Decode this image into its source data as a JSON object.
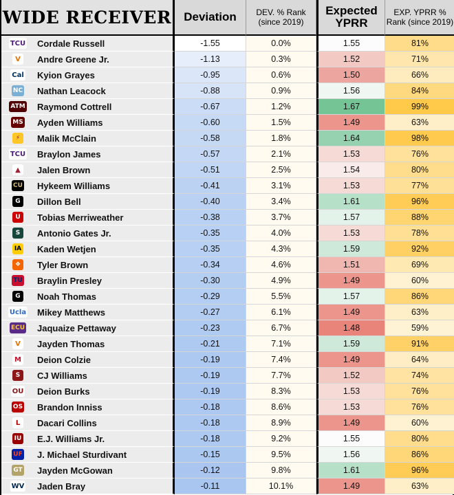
{
  "chart_data": {
    "type": "table",
    "title": "WIDE RECEIVER",
    "columns": [
      "Deviation",
      "DEV. % Rank (since 2019)",
      "Expected YPRR",
      "EXP. YPRR % Rank (since 2019)"
    ],
    "rows": [
      {
        "name": "Cordale Russell",
        "logo": "tcu-logo",
        "deviation": "-1.55",
        "dev_rank": "0.0%",
        "exp_yprr": "1.55",
        "exp_rank": "81%"
      },
      {
        "name": "Andre Greene Jr.",
        "logo": "virginia-logo",
        "deviation": "-1.13",
        "dev_rank": "0.3%",
        "exp_yprr": "1.52",
        "exp_rank": "71%"
      },
      {
        "name": "Kyion Grayes",
        "logo": "cal-logo",
        "deviation": "-0.95",
        "dev_rank": "0.6%",
        "exp_yprr": "1.50",
        "exp_rank": "66%"
      },
      {
        "name": "Nathan Leacock",
        "logo": "unc-logo",
        "deviation": "-0.88",
        "dev_rank": "0.9%",
        "exp_yprr": "1.56",
        "exp_rank": "84%"
      },
      {
        "name": "Raymond Cottrell",
        "logo": "texas-am-logo",
        "deviation": "-0.67",
        "dev_rank": "1.2%",
        "exp_yprr": "1.67",
        "exp_rank": "99%"
      },
      {
        "name": "Ayden Williams",
        "logo": "mississippi-state-logo",
        "deviation": "-0.60",
        "dev_rank": "1.5%",
        "exp_yprr": "1.49",
        "exp_rank": "63%"
      },
      {
        "name": "Malik McClain",
        "logo": "arizona-state-logo",
        "deviation": "-0.58",
        "dev_rank": "1.8%",
        "exp_yprr": "1.64",
        "exp_rank": "98%"
      },
      {
        "name": "Braylon James",
        "logo": "tcu-logo",
        "deviation": "-0.57",
        "dev_rank": "2.1%",
        "exp_yprr": "1.53",
        "exp_rank": "76%"
      },
      {
        "name": "Jalen Brown",
        "logo": "arkansas-logo",
        "deviation": "-0.51",
        "dev_rank": "2.5%",
        "exp_yprr": "1.54",
        "exp_rank": "80%"
      },
      {
        "name": "Hykeem Williams",
        "logo": "colorado-logo",
        "deviation": "-0.41",
        "dev_rank": "3.1%",
        "exp_yprr": "1.53",
        "exp_rank": "77%"
      },
      {
        "name": "Dillon Bell",
        "logo": "georgia-logo",
        "deviation": "-0.40",
        "dev_rank": "3.4%",
        "exp_yprr": "1.61",
        "exp_rank": "96%"
      },
      {
        "name": "Tobias Merriweather",
        "logo": "utah-logo",
        "deviation": "-0.38",
        "dev_rank": "3.7%",
        "exp_yprr": "1.57",
        "exp_rank": "88%"
      },
      {
        "name": "Antonio Gates Jr.",
        "logo": "michigan-state-logo",
        "deviation": "-0.35",
        "dev_rank": "4.0%",
        "exp_yprr": "1.53",
        "exp_rank": "78%"
      },
      {
        "name": "Kaden Wetjen",
        "logo": "iowa-logo",
        "deviation": "-0.35",
        "dev_rank": "4.3%",
        "exp_yprr": "1.59",
        "exp_rank": "92%"
      },
      {
        "name": "Tyler Brown",
        "logo": "clemson-logo",
        "deviation": "-0.34",
        "dev_rank": "4.6%",
        "exp_yprr": "1.51",
        "exp_rank": "69%"
      },
      {
        "name": "Braylin Presley",
        "logo": "tulsa-logo",
        "deviation": "-0.30",
        "dev_rank": "4.9%",
        "exp_yprr": "1.49",
        "exp_rank": "60%"
      },
      {
        "name": "Noah Thomas",
        "logo": "georgia-logo",
        "deviation": "-0.29",
        "dev_rank": "5.5%",
        "exp_yprr": "1.57",
        "exp_rank": "86%"
      },
      {
        "name": "Mikey Matthews",
        "logo": "ucla-logo",
        "deviation": "-0.27",
        "dev_rank": "6.1%",
        "exp_yprr": "1.49",
        "exp_rank": "63%"
      },
      {
        "name": "Jaquaize Pettaway",
        "logo": "east-carolina-logo",
        "deviation": "-0.23",
        "dev_rank": "6.7%",
        "exp_yprr": "1.48",
        "exp_rank": "59%"
      },
      {
        "name": "Jayden Thomas",
        "logo": "virginia-logo",
        "deviation": "-0.21",
        "dev_rank": "7.1%",
        "exp_yprr": "1.59",
        "exp_rank": "91%"
      },
      {
        "name": "Deion Colzie",
        "logo": "miami-ohio-logo",
        "deviation": "-0.19",
        "dev_rank": "7.4%",
        "exp_yprr": "1.49",
        "exp_rank": "64%"
      },
      {
        "name": "CJ Williams",
        "logo": "stanford-logo",
        "deviation": "-0.19",
        "dev_rank": "7.7%",
        "exp_yprr": "1.52",
        "exp_rank": "74%"
      },
      {
        "name": "Deion Burks",
        "logo": "oklahoma-logo",
        "deviation": "-0.19",
        "dev_rank": "8.3%",
        "exp_yprr": "1.53",
        "exp_rank": "76%"
      },
      {
        "name": "Brandon Inniss",
        "logo": "ohio-state-logo",
        "deviation": "-0.18",
        "dev_rank": "8.6%",
        "exp_yprr": "1.53",
        "exp_rank": "76%"
      },
      {
        "name": "Dacari Collins",
        "logo": "louisville-logo",
        "deviation": "-0.18",
        "dev_rank": "8.9%",
        "exp_yprr": "1.49",
        "exp_rank": "60%"
      },
      {
        "name": "E.J. Williams Jr.",
        "logo": "indiana-logo",
        "deviation": "-0.18",
        "dev_rank": "9.2%",
        "exp_yprr": "1.55",
        "exp_rank": "80%"
      },
      {
        "name": "J. Michael Sturdivant",
        "logo": "florida-logo",
        "deviation": "-0.15",
        "dev_rank": "9.5%",
        "exp_yprr": "1.56",
        "exp_rank": "86%"
      },
      {
        "name": "Jayden McGowan",
        "logo": "georgia-tech-logo",
        "deviation": "-0.12",
        "dev_rank": "9.8%",
        "exp_yprr": "1.61",
        "exp_rank": "96%"
      },
      {
        "name": "Jaden Bray",
        "logo": "west-virginia-logo",
        "deviation": "-0.11",
        "dev_rank": "10.1%",
        "exp_yprr": "1.49",
        "exp_rank": "63%"
      }
    ]
  },
  "logos": {
    "tcu-logo": {
      "text": "TCU",
      "bg": "#ffffff",
      "fg": "#4d1979"
    },
    "virginia-logo": {
      "text": "V",
      "bg": "#ffffff",
      "fg": "#e57200"
    },
    "cal-logo": {
      "text": "Cal",
      "bg": "#ffffff",
      "fg": "#003262"
    },
    "unc-logo": {
      "text": "NC",
      "bg": "#7bafd4",
      "fg": "#ffffff"
    },
    "texas-am-logo": {
      "text": "ATM",
      "bg": "#500000",
      "fg": "#ffffff"
    },
    "mississippi-state-logo": {
      "text": "MS",
      "bg": "#660000",
      "fg": "#ffffff"
    },
    "arizona-state-logo": {
      "text": "⚡",
      "bg": "#ffc627",
      "fg": "#8c1d40"
    },
    "arkansas-logo": {
      "text": "▲",
      "bg": "#ffffff",
      "fg": "#9d2235"
    },
    "colorado-logo": {
      "text": "CU",
      "bg": "#000000",
      "fg": "#cfb87c"
    },
    "georgia-logo": {
      "text": "G",
      "bg": "#000000",
      "fg": "#ffffff"
    },
    "utah-logo": {
      "text": "U",
      "bg": "#cc0000",
      "fg": "#ffffff"
    },
    "michigan-state-logo": {
      "text": "S",
      "bg": "#18453b",
      "fg": "#ffffff"
    },
    "iowa-logo": {
      "text": "IA",
      "bg": "#ffcd00",
      "fg": "#000000"
    },
    "clemson-logo": {
      "text": "❖",
      "bg": "#f56600",
      "fg": "#ffffff"
    },
    "tulsa-logo": {
      "text": "TU",
      "bg": "#c8102e",
      "fg": "#002d72"
    },
    "ucla-logo": {
      "text": "Ucla",
      "bg": "#ffffff",
      "fg": "#2d68c4"
    },
    "east-carolina-logo": {
      "text": "ECU",
      "bg": "#592a8a",
      "fg": "#fdc82f"
    },
    "miami-ohio-logo": {
      "text": "M",
      "bg": "#ffffff",
      "fg": "#c3142d"
    },
    "stanford-logo": {
      "text": "S",
      "bg": "#8c1515",
      "fg": "#ffffff"
    },
    "oklahoma-logo": {
      "text": "OU",
      "bg": "#ffffff",
      "fg": "#841617"
    },
    "ohio-state-logo": {
      "text": "OS",
      "bg": "#bb0000",
      "fg": "#ffffff"
    },
    "louisville-logo": {
      "text": "L",
      "bg": "#ffffff",
      "fg": "#ad0000"
    },
    "indiana-logo": {
      "text": "IU",
      "bg": "#990000",
      "fg": "#ffffff"
    },
    "florida-logo": {
      "text": "UF",
      "bg": "#0021a5",
      "fg": "#fa4616"
    },
    "georgia-tech-logo": {
      "text": "GT",
      "bg": "#b3a369",
      "fg": "#ffffff"
    },
    "west-virginia-logo": {
      "text": "WV",
      "bg": "#ffffff",
      "fg": "#002855"
    }
  },
  "colors": {
    "deviation_scale": [
      "#ffffff",
      "#a9c6f0"
    ],
    "dev_rank_bg": "#fffbf0",
    "exp_low": "#e8847a",
    "exp_mid": "#fbfcfb",
    "exp_high": "#74c496",
    "rank_low": "#fff3d6",
    "rank_high": "#ffc94a"
  }
}
